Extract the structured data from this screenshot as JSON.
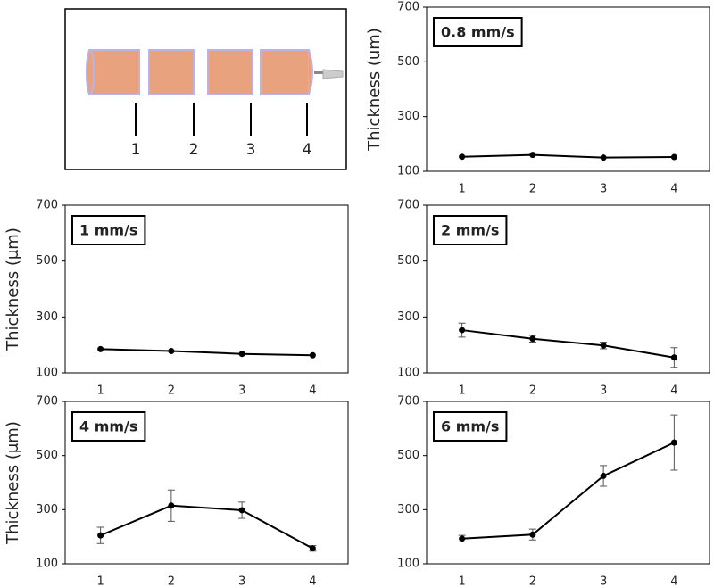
{
  "diagram": {
    "labels": [
      "1",
      "2",
      "3",
      "4"
    ]
  },
  "chart_data": [
    {
      "type": "line",
      "title": "0.8 mm/s",
      "ylabel": "Thickness (um)",
      "categories": [
        "1",
        "2",
        "3",
        "4"
      ],
      "values": [
        153,
        160,
        150,
        152
      ],
      "color": "#000000",
      "ylim": [
        100,
        700
      ],
      "yticks": [
        100,
        300,
        500,
        700
      ]
    },
    {
      "type": "line",
      "title": "1 mm/s",
      "ylabel": "Thickness (μm)",
      "categories": [
        "1",
        "2",
        "3",
        "4"
      ],
      "values": [
        185,
        178,
        168,
        163
      ],
      "color": "#000000",
      "ylim": [
        100,
        700
      ],
      "yticks": [
        100,
        300,
        500,
        700
      ]
    },
    {
      "type": "line",
      "title": "2 mm/s",
      "categories": [
        "1",
        "2",
        "3",
        "4"
      ],
      "values": [
        253,
        222,
        198,
        155
      ],
      "errors": [
        25,
        12,
        12,
        35
      ],
      "color": "#000000",
      "ylim": [
        100,
        700
      ],
      "yticks": [
        100,
        300,
        500,
        700
      ]
    },
    {
      "type": "line",
      "title": "4 mm/s",
      "ylabel": "Thickness (μm)",
      "categories": [
        "1",
        "2",
        "3",
        "4"
      ],
      "values": [
        205,
        315,
        298,
        157
      ],
      "errors": [
        30,
        58,
        30,
        10
      ],
      "color": "#000000",
      "ylim": [
        100,
        700
      ],
      "yticks": [
        100,
        300,
        500,
        700
      ]
    },
    {
      "type": "line",
      "title": "6 mm/s",
      "categories": [
        "1",
        "2",
        "3",
        "4"
      ],
      "values": [
        193,
        208,
        425,
        548
      ],
      "errors": [
        12,
        20,
        38,
        102
      ],
      "color": "#000000",
      "ylim": [
        100,
        700
      ],
      "yticks": [
        100,
        300,
        500,
        700
      ]
    }
  ]
}
